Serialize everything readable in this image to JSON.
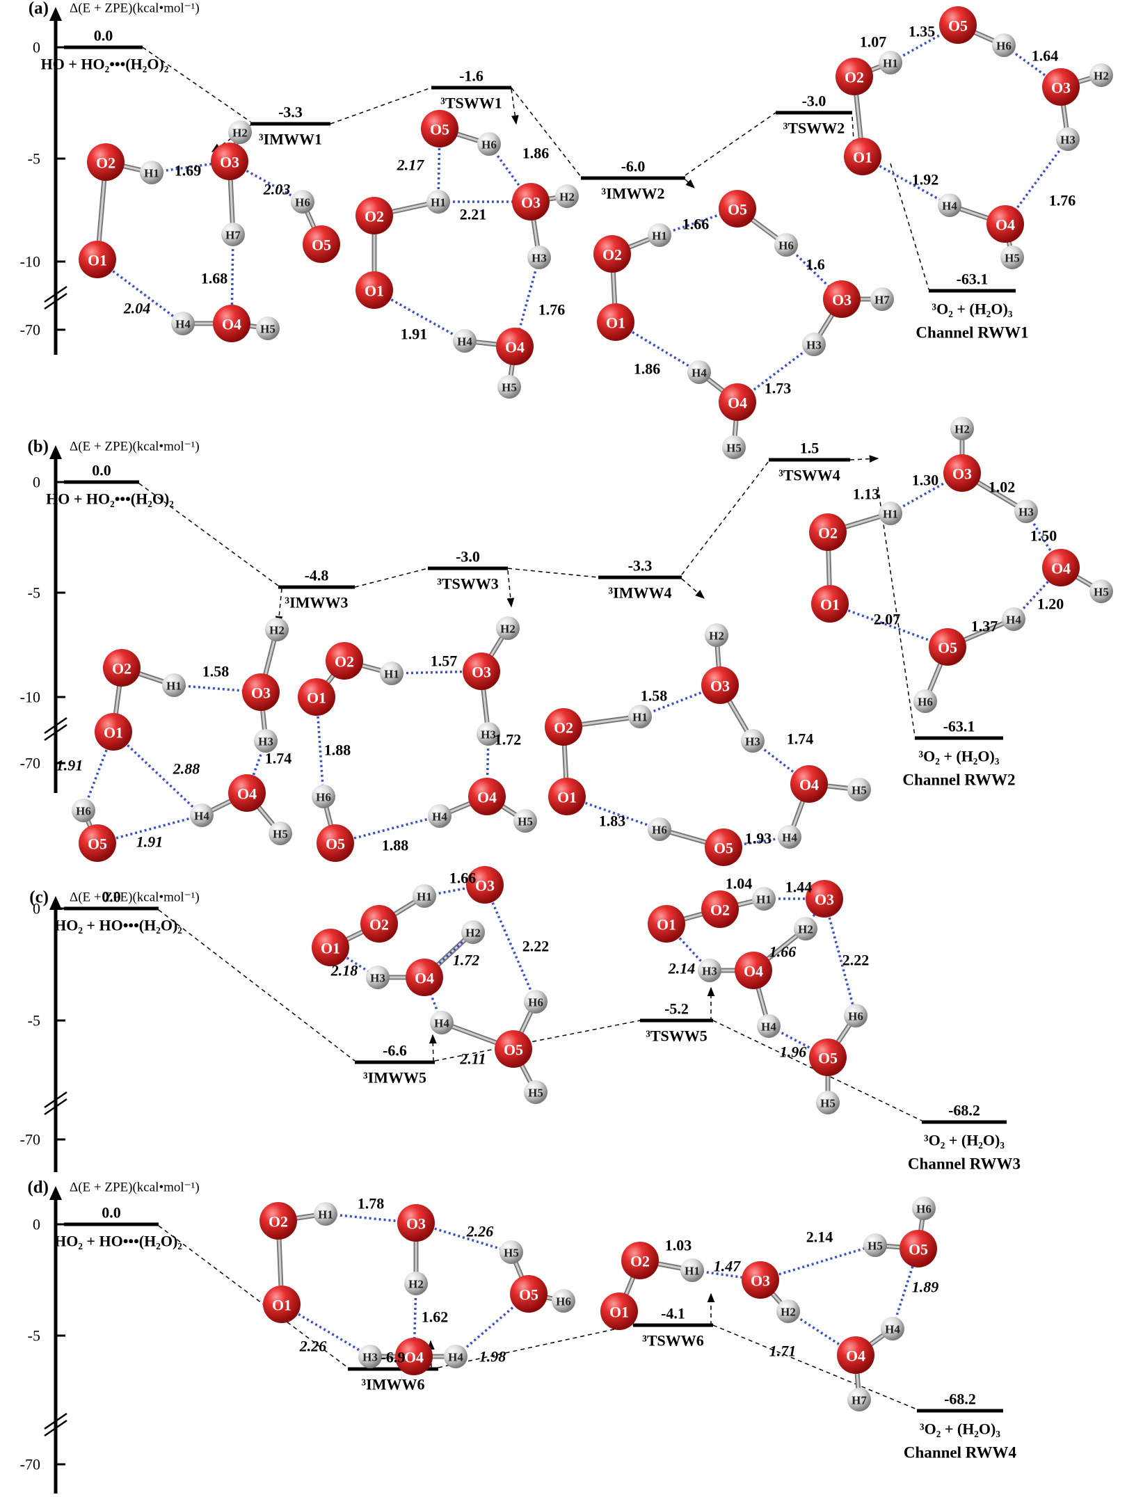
{
  "colors": {
    "oxygen": "#d81e1e",
    "hydrogen": "#d4d4d4",
    "hbond": "#3b50c8",
    "text": "#000000"
  },
  "axis_label": "Δ(E + ZPE)(kcal•mol⁻¹)",
  "panels": [
    {
      "letter": "(a)",
      "ticks": [
        "0",
        "-5",
        "-10",
        "-70"
      ],
      "levels": [
        {
          "value": "0.0",
          "label": "HO + HO₂•••(H₂O)₂"
        },
        {
          "value": "-3.3",
          "label": "³IMWW1"
        },
        {
          "value": "-1.6",
          "label": "³TSWW1"
        },
        {
          "value": "-6.0",
          "label": "³IMWW2"
        },
        {
          "value": "-3.0",
          "label": "³TSWW2"
        },
        {
          "value": "-63.1",
          "label": "³O₂ + (H₂O)₃",
          "channel": "Channel RWW1"
        }
      ],
      "distances": [
        "1.69",
        "2.03",
        "1.68",
        "2.04",
        "2.17",
        "1.86",
        "2.21",
        "1.76",
        "1.91",
        "1.66",
        "1.6",
        "1.86",
        "1.73",
        "1.07",
        "1.35",
        "1.64",
        "1.92",
        "1.76"
      ]
    },
    {
      "letter": "(b)",
      "ticks": [
        "0",
        "-5",
        "-10",
        "-70"
      ],
      "levels": [
        {
          "value": "0.0",
          "label": "HO + HO₂•••(H₂O)₂"
        },
        {
          "value": "-4.8",
          "label": "³IMWW3"
        },
        {
          "value": "-3.0",
          "label": "³TSWW3"
        },
        {
          "value": "-3.3",
          "label": "³IMWW4"
        },
        {
          "value": "1.5",
          "label": "³TSWW4"
        },
        {
          "value": "-63.1",
          "label": "³O₂ + (H₂O)₃",
          "channel": "Channel RWW2"
        }
      ],
      "distances": [
        "1.58",
        "1.74",
        "1.91",
        "2.88",
        "1.91",
        "1.57",
        "1.88",
        "1.72",
        "1.88",
        "1.58",
        "1.74",
        "1.83",
        "1.93",
        "1.13",
        "1.30",
        "1.02",
        "1.50",
        "2.07",
        "1.37",
        "1.20"
      ]
    },
    {
      "letter": "(c)",
      "ticks": [
        "0",
        "-5",
        "-70"
      ],
      "levels": [
        {
          "value": "0.0",
          "label": "HO₂ + HO•••(H₂O)₂"
        },
        {
          "value": "-6.6",
          "label": "³IMWW5"
        },
        {
          "value": "-5.2",
          "label": "³TSWW5"
        },
        {
          "value": "-68.2",
          "label": "³O₂ + (H₂O)₃",
          "channel": "Channel RWW3"
        }
      ],
      "distances": [
        "1.66",
        "2.22",
        "1.72",
        "2.18",
        "2.11",
        "1.04",
        "1.44",
        "2.22",
        "1.66",
        "2.14",
        "1.96"
      ]
    },
    {
      "letter": "(d)",
      "ticks": [
        "0",
        "-5",
        "-70"
      ],
      "levels": [
        {
          "value": "0.0",
          "label": "HO₂ + HO•••(H₂O)₂"
        },
        {
          "value": "-6.9",
          "label": "³IMWW6"
        },
        {
          "value": "-4.1",
          "label": "³TSWW6"
        },
        {
          "value": "-68.2",
          "label": "³O₂ + (H₂O)₃",
          "channel": "Channel RWW4"
        }
      ],
      "distances": [
        "1.78",
        "2.26",
        "1.62",
        "2.26",
        "1.98",
        "1.03",
        "1.47",
        "2.14",
        "1.89",
        "1.71"
      ]
    }
  ],
  "atoms": {
    "O1": "O1",
    "O2": "O2",
    "O3": "O3",
    "O4": "O4",
    "O5": "O5",
    "H1": "H1",
    "H2": "H2",
    "H3": "H3",
    "H4": "H4",
    "H5": "H5",
    "H6": "H6",
    "H7": "H7"
  }
}
